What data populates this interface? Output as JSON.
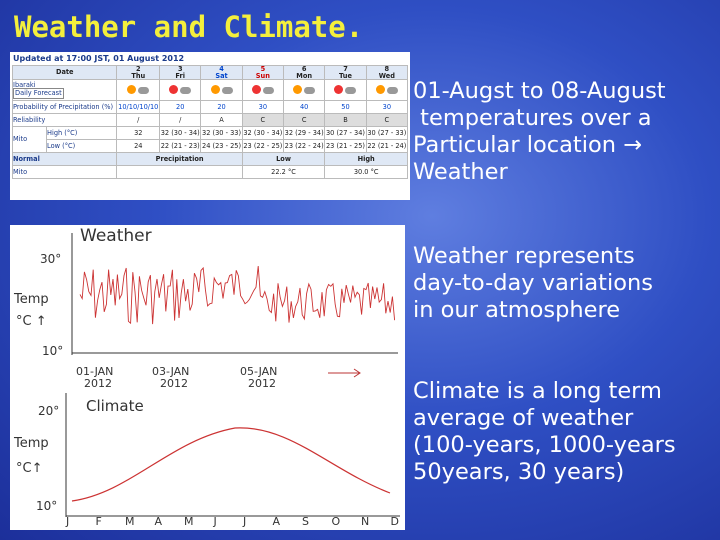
{
  "title": "Weather and Climate.",
  "paragraphs": [
    [
      "01-Augst to 08-August",
      " temperatures over a",
      "Particular location →",
      "Weather"
    ],
    [
      "Weather represents",
      "day-to-day variations",
      "in our atmosphere"
    ],
    [
      "Climate is a long term",
      "average of weather",
      "(100-years, 1000-years",
      "50years, 30 years)"
    ]
  ],
  "forecast": {
    "updated": "Updated at 17:00 JST, 01 August 2012",
    "date_label": "Date",
    "location": "Ibaraki",
    "button": "Daily Forecast",
    "station": "Mito",
    "days": [
      {
        "date": "2",
        "day": "Thu"
      },
      {
        "date": "3",
        "day": "Fri"
      },
      {
        "date": "4",
        "day": "Sat"
      },
      {
        "date": "5",
        "day": "Sun"
      },
      {
        "date": "6",
        "day": "Mon"
      },
      {
        "date": "7",
        "day": "Tue"
      },
      {
        "date": "8",
        "day": "Wed"
      }
    ],
    "rows": [
      {
        "label": "Probability of Precipitation (%)",
        "cells": [
          "10/10/10/10",
          "20",
          "20",
          "30",
          "40",
          "50",
          "30"
        ]
      },
      {
        "label": "Reliability",
        "cells": [
          "/",
          "/",
          "A",
          "C",
          "C",
          "B",
          "C"
        ]
      },
      {
        "label": "High (°C)",
        "cells": [
          "32",
          "32 (30 - 34)",
          "32 (30 - 33)",
          "32 (30 - 34)",
          "32 (29 - 34)",
          "30 (27 - 34)",
          "30 (27 - 33)"
        ]
      },
      {
        "label": "Low (°C)",
        "cells": [
          "24",
          "22 (21 - 23)",
          "24 (23 - 25)",
          "23 (22 - 25)",
          "23 (22 - 24)",
          "23 (21 - 25)",
          "22 (21 - 24)"
        ]
      }
    ],
    "normal": {
      "label": "Normal",
      "headers": [
        "Precipitation",
        "Low",
        "High"
      ],
      "low": "22.2 °C",
      "high": "30.0 °C"
    }
  },
  "weather_sketch": {
    "title": "Weather",
    "axis_label": "Temp",
    "unit": "°C ↑",
    "top": "30°",
    "bottom": "10°",
    "dates": [
      [
        "01-JAN",
        "2012"
      ],
      [
        "03-JAN",
        "2012"
      ],
      [
        "05-JAN",
        "2012"
      ]
    ]
  },
  "climate_sketch": {
    "title": "Climate",
    "axis_label": "Temp",
    "unit": "°C↑",
    "top": "20°",
    "bottom": "10°",
    "months": [
      "J",
      "F",
      "M",
      "A",
      "M",
      "J",
      "J",
      "A",
      "S",
      "O",
      "N",
      "D"
    ]
  }
}
